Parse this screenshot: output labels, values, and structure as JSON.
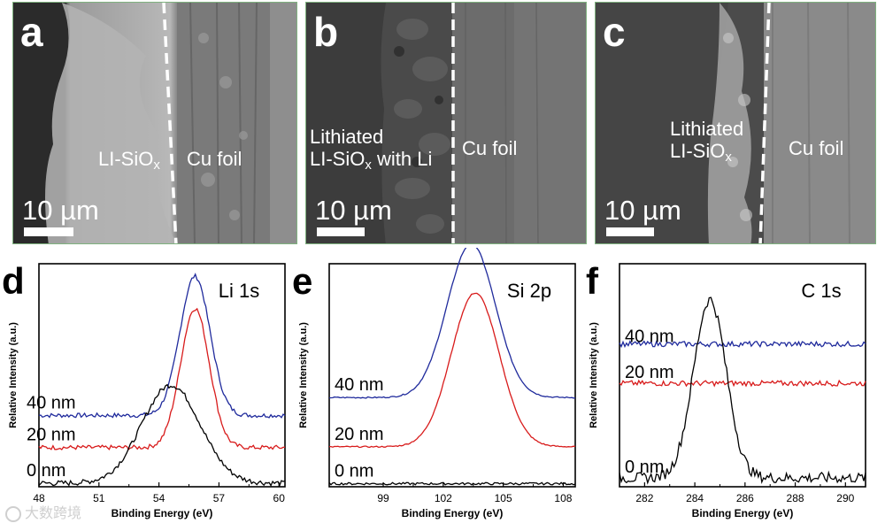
{
  "sem_panels": [
    {
      "letter": "a",
      "left_label": "LI-SiO",
      "left_label_sub": "x",
      "right_label": "Cu foil",
      "scale": "10 µm"
    },
    {
      "letter": "b",
      "left_label_line1": "Lithiated",
      "left_label_line2": "LI-SiO",
      "left_label_sub": "x",
      "left_label_tail": " with Li",
      "right_label": "Cu foil",
      "scale": "10 µm"
    },
    {
      "letter": "c",
      "left_label_line1": "Lithiated",
      "left_label_line2": "LI-SiO",
      "left_label_sub": "x",
      "right_label": "Cu foil",
      "scale": "10 µm"
    }
  ],
  "chart_data": [
    {
      "type": "line",
      "panel": "d",
      "title": "Li 1s",
      "xlabel": "Binding Energy (eV)",
      "ylabel": "Relative Intensity (a.u.)",
      "xlim": [
        48,
        60.3
      ],
      "xticks": [
        48,
        51,
        54,
        57,
        60
      ],
      "reversed_x": false,
      "series": [
        {
          "name": "40 nm",
          "color": "#1f2a9c",
          "baseline": 0.0,
          "peaks": [
            [
              55.8,
              0.78,
              0.75
            ]
          ],
          "noise": 0.025
        },
        {
          "name": "20 nm",
          "color": "#d81b1b",
          "baseline": 0.0,
          "peaks": [
            [
              55.8,
              0.78,
              0.72
            ]
          ],
          "noise": 0.025
        },
        {
          "name": "0 nm",
          "color": "#000000",
          "baseline": 0.0,
          "peaks": [
            [
              54.6,
              0.55,
              1.45
            ]
          ],
          "noise": 0.03
        }
      ]
    },
    {
      "type": "line",
      "panel": "e",
      "title": "Si 2p",
      "xlabel": "Binding Energy (eV)",
      "ylabel": "Relative Intensity (a.u.)",
      "xlim": [
        96.3,
        108.6
      ],
      "xticks": [
        99,
        102,
        105,
        108
      ],
      "reversed_x": false,
      "series": [
        {
          "name": "40 nm",
          "color": "#1f2a9c",
          "baseline": 0.0,
          "peaks": [
            [
              103.4,
              1.0,
              1.2
            ]
          ],
          "noise": 0.008
        },
        {
          "name": "20 nm",
          "color": "#d81b1b",
          "baseline": 0.0,
          "peaks": [
            [
              103.6,
              1.0,
              1.2
            ]
          ],
          "noise": 0.008
        },
        {
          "name": "0 nm",
          "color": "#000000",
          "baseline": 0.0,
          "peaks": [],
          "noise": 0.015
        }
      ]
    },
    {
      "type": "line",
      "panel": "f",
      "title": "C 1s",
      "xlabel": "Binding Energy (eV)",
      "ylabel": "Relative Intensity (a.u.)",
      "xlim": [
        281,
        290.8
      ],
      "xticks": [
        282,
        284,
        286,
        288,
        290
      ],
      "reversed_x": false,
      "series": [
        {
          "name": "40 nm",
          "color": "#1f2a9c",
          "baseline": 0.0,
          "peaks": [],
          "noise": 0.03
        },
        {
          "name": "20 nm",
          "color": "#d81b1b",
          "baseline": 0.0,
          "peaks": [],
          "noise": 0.03
        },
        {
          "name": "0 nm",
          "color": "#000000",
          "baseline": 0.0,
          "peaks": [
            [
              284.6,
              1.0,
              0.65
            ]
          ],
          "noise": 0.06
        }
      ]
    }
  ],
  "watermark": "大数跨境"
}
